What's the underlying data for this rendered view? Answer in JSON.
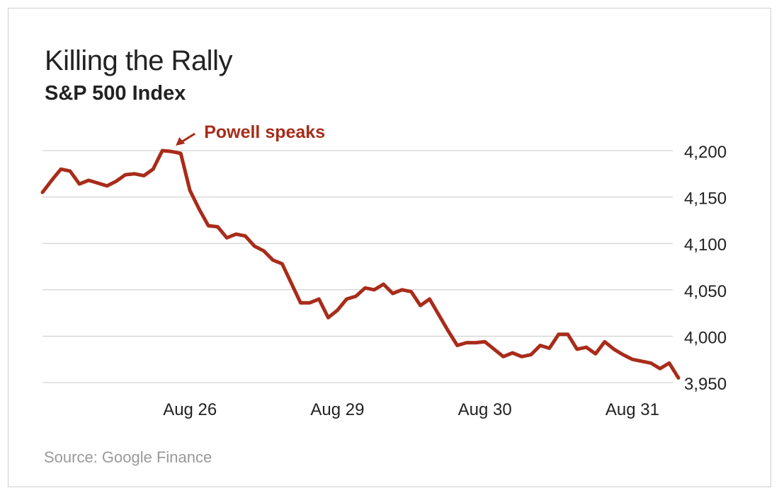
{
  "title": "Killing the Rally",
  "subtitle": "S&P 500 Index",
  "source": "Source: Google Finance",
  "colors": {
    "line": "#a82c1a",
    "grid": "#c8c8c8",
    "text": "#222222",
    "muted": "#9a9a9a"
  },
  "chart_data": {
    "type": "line",
    "title": "Killing the Rally",
    "subtitle": "S&P 500 Index",
    "xlabel": "",
    "ylabel": "",
    "ylim": [
      3950,
      4200
    ],
    "yticks": [
      3950,
      4000,
      4050,
      4100,
      4150,
      4200
    ],
    "ytick_labels": [
      "3,950",
      "4,000",
      "4,050",
      "4,100",
      "4,150",
      "4,200"
    ],
    "y_axis_side": "right",
    "grid": "horizontal",
    "xticks": [
      {
        "index": 16,
        "label": "Aug 26"
      },
      {
        "index": 32,
        "label": "Aug 29"
      },
      {
        "index": 48,
        "label": "Aug 30"
      },
      {
        "index": 64,
        "label": "Aug 31"
      }
    ],
    "series": [
      {
        "values": [
          4155,
          4168,
          4180,
          4178,
          4164,
          4168,
          4165,
          4162,
          4167,
          4174,
          4175,
          4173,
          4180,
          4200,
          4199,
          4197,
          4157,
          4137,
          4119,
          4118,
          4106,
          4110,
          4108,
          4097,
          4092,
          4082,
          4078,
          4057,
          4036,
          4036,
          4040,
          4020,
          4028,
          4040,
          4043,
          4052,
          4050,
          4056,
          4046,
          4050,
          4048,
          4033,
          4040,
          4023,
          4006,
          3990,
          3993,
          3993,
          3994,
          3986,
          3978,
          3982,
          3978,
          3980,
          3990,
          3987,
          4002,
          4002,
          3986,
          3988,
          3981,
          3994,
          3986,
          3980,
          3975,
          3973,
          3971,
          3965,
          3971,
          3955
        ]
      }
    ],
    "annotations": [
      {
        "text": "Powell speaks",
        "point_index": 14,
        "value": 4200
      }
    ]
  }
}
